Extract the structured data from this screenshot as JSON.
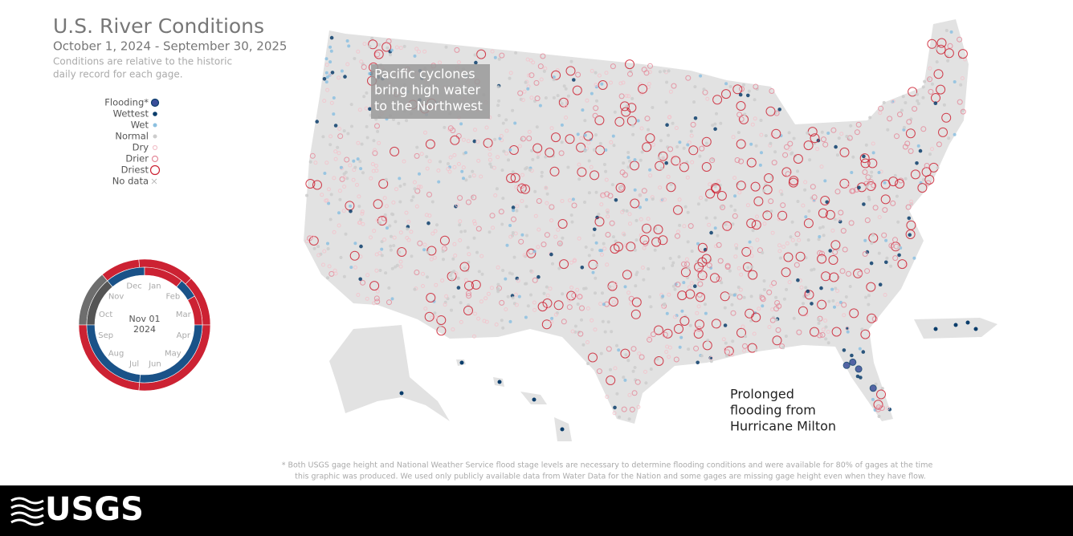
{
  "header": {
    "title": "U.S. River Conditions",
    "subtitle": "October 1, 2024 - September 30, 2025",
    "note_lines": [
      "Conditions are relative to the historic",
      "daily record for each gage."
    ]
  },
  "legend": {
    "items": [
      "Flooding*",
      "Wettest",
      "Wet",
      "Normal",
      "Dry",
      "Drier",
      "Driest",
      "No data"
    ]
  },
  "ring": {
    "months": [
      "Jan",
      "Feb",
      "Mar",
      "Apr",
      "May",
      "Jun",
      "Jul",
      "Aug",
      "Sep",
      "Oct",
      "Nov",
      "Dec"
    ],
    "date": "Nov 01",
    "year": "2024"
  },
  "annotations": {
    "northwest": [
      "Pacific cyclones",
      "bring high water",
      "to the Northwest"
    ],
    "milton": [
      "Prolonged",
      "flooding from",
      "Hurricane Milton"
    ]
  },
  "footnote": [
    "* Both USGS gage height and National Weather Service flood stage levels are necessary to determine flooding conditions and were available for 80% of gages at the time",
    "this graphic was produced. We used only publicly available data from Water Data for the Nation and some gages are missing gage height even when they have flow."
  ],
  "logo": "USGS"
}
